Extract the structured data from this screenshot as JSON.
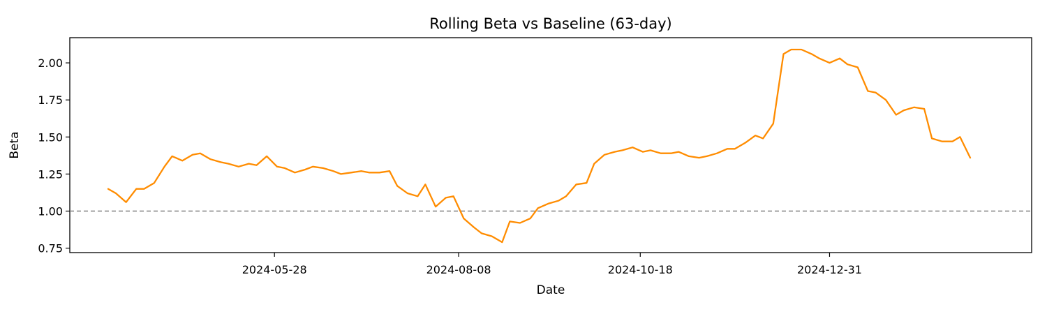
{
  "chart_data": {
    "type": "line",
    "title": "Rolling Beta vs Baseline (63-day)",
    "xlabel": "Date",
    "ylabel": "Beta",
    "x_ticks": [
      "2024-05-28",
      "2024-08-08",
      "2024-10-18",
      "2024-12-31"
    ],
    "y_ticks": [
      "0.75",
      "1.00",
      "1.25",
      "1.50",
      "1.75",
      "2.00"
    ],
    "xlim": [
      "2024-03-09",
      "2025-03-20"
    ],
    "ylim": [
      0.72,
      2.17
    ],
    "grid": false,
    "reference_line": {
      "y": 1.0,
      "style": "dashed",
      "color": "#808080"
    },
    "colors": {
      "line": "#ff8c00"
    },
    "series": [
      {
        "x": [
          "2024-03-24",
          "2024-03-27",
          "2024-03-31",
          "2024-04-04",
          "2024-04-07",
          "2024-04-11",
          "2024-04-15",
          "2024-04-18",
          "2024-04-22",
          "2024-04-26",
          "2024-04-29",
          "2024-05-03",
          "2024-05-07",
          "2024-05-10",
          "2024-05-14",
          "2024-05-18",
          "2024-05-21",
          "2024-05-25",
          "2024-05-29",
          "2024-06-01",
          "2024-06-05",
          "2024-06-09",
          "2024-06-12",
          "2024-06-16",
          "2024-06-20",
          "2024-06-23",
          "2024-06-27",
          "2024-07-01",
          "2024-07-04",
          "2024-07-08",
          "2024-07-12",
          "2024-07-15",
          "2024-07-19",
          "2024-07-23",
          "2024-07-26",
          "2024-07-30",
          "2024-08-03",
          "2024-08-06",
          "2024-08-10",
          "2024-08-14",
          "2024-08-17",
          "2024-08-21",
          "2024-08-25",
          "2024-08-28",
          "2024-09-01",
          "2024-09-05",
          "2024-09-08",
          "2024-09-12",
          "2024-09-16",
          "2024-09-19",
          "2024-09-23",
          "2024-09-27",
          "2024-09-30",
          "2024-10-04",
          "2024-10-08",
          "2024-10-11",
          "2024-10-15",
          "2024-10-19",
          "2024-10-22",
          "2024-10-26",
          "2024-10-30",
          "2024-11-02",
          "2024-11-06",
          "2024-11-10",
          "2024-11-13",
          "2024-11-17",
          "2024-11-21",
          "2024-11-24",
          "2024-11-28",
          "2024-12-02",
          "2024-12-05",
          "2024-12-09",
          "2024-12-13",
          "2024-12-16",
          "2024-12-20",
          "2024-12-24",
          "2024-12-27",
          "2024-12-31",
          "2025-01-04",
          "2025-01-07",
          "2025-01-11",
          "2025-01-15",
          "2025-01-18",
          "2025-01-22",
          "2025-01-26",
          "2025-01-29",
          "2025-02-02",
          "2025-02-06",
          "2025-02-09",
          "2025-02-13",
          "2025-02-17",
          "2025-02-20",
          "2025-02-24"
        ],
        "values": [
          1.15,
          1.12,
          1.06,
          1.15,
          1.15,
          1.19,
          1.3,
          1.37,
          1.34,
          1.38,
          1.39,
          1.35,
          1.33,
          1.32,
          1.3,
          1.32,
          1.31,
          1.37,
          1.3,
          1.29,
          1.26,
          1.28,
          1.3,
          1.29,
          1.27,
          1.25,
          1.26,
          1.27,
          1.26,
          1.26,
          1.27,
          1.17,
          1.12,
          1.1,
          1.18,
          1.03,
          1.09,
          1.1,
          0.95,
          0.89,
          0.85,
          0.83,
          0.79,
          0.93,
          0.92,
          0.95,
          1.02,
          1.05,
          1.07,
          1.1,
          1.18,
          1.19,
          1.32,
          1.38,
          1.4,
          1.41,
          1.43,
          1.4,
          1.41,
          1.39,
          1.39,
          1.4,
          1.37,
          1.36,
          1.37,
          1.39,
          1.42,
          1.42,
          1.46,
          1.51,
          1.49,
          1.59,
          2.06,
          2.09,
          2.09,
          2.06,
          2.03,
          2.0,
          2.03,
          1.99,
          1.97,
          1.81,
          1.8,
          1.75,
          1.65,
          1.68,
          1.7,
          1.69,
          1.49,
          1.47,
          1.47,
          1.5,
          1.36
        ]
      }
    ]
  }
}
